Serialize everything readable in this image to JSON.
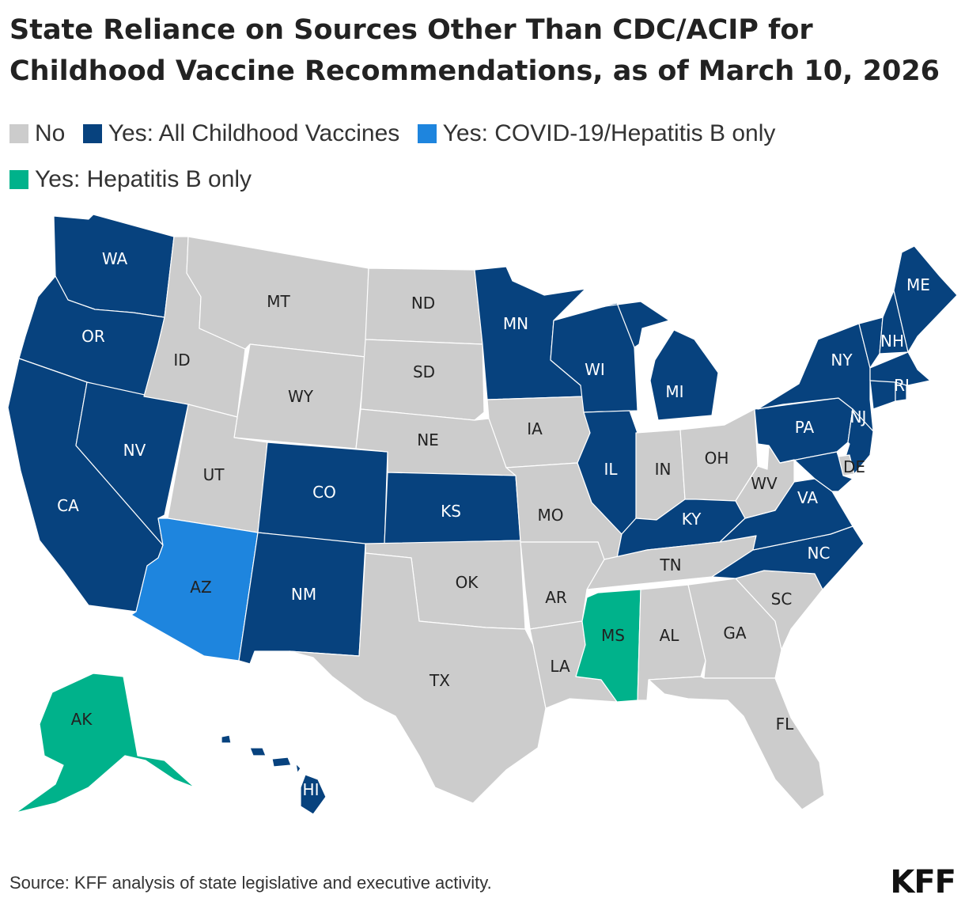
{
  "title": "State Reliance on Sources Other Than CDC/ACIP for Childhood Vaccine Recommendations, as of March 10, 2026",
  "legend": [
    {
      "key": "no",
      "label": "No",
      "color": "#cccccc"
    },
    {
      "key": "all",
      "label": "Yes: All Childhood Vaccines",
      "color": "#07427e"
    },
    {
      "key": "covid",
      "label": "Yes: COVID-19/Hepatitis B only",
      "color": "#1e85de"
    },
    {
      "key": "hepb",
      "label": "Yes: Hepatitis B only",
      "color": "#00b28b"
    }
  ],
  "states": {
    "WA": "all",
    "OR": "all",
    "CA": "all",
    "NV": "all",
    "ID": "no",
    "MT": "no",
    "WY": "no",
    "UT": "no",
    "AZ": "covid",
    "CO": "all",
    "NM": "all",
    "ND": "no",
    "SD": "no",
    "NE": "no",
    "KS": "all",
    "OK": "no",
    "TX": "no",
    "MN": "all",
    "IA": "no",
    "MO": "no",
    "AR": "no",
    "LA": "no",
    "WI": "all",
    "IL": "all",
    "MI": "all",
    "IN": "no",
    "OH": "no",
    "KY": "all",
    "TN": "no",
    "MS": "hepb",
    "AL": "no",
    "GA": "no",
    "FL": "no",
    "SC": "no",
    "NC": "all",
    "VA": "all",
    "WV": "no",
    "PA": "all",
    "NY": "all",
    "NJ": "all",
    "DE": "no",
    "MD": "all",
    "VT": "all",
    "NH": "all",
    "ME": "all",
    "MA": "all",
    "RI": "all",
    "CT": "all",
    "AK": "hepb",
    "HI": "all"
  },
  "labels": [
    "WA",
    "OR",
    "CA",
    "NV",
    "ID",
    "MT",
    "WY",
    "UT",
    "AZ",
    "CO",
    "NM",
    "ND",
    "SD",
    "NE",
    "KS",
    "OK",
    "TX",
    "MN",
    "IA",
    "MO",
    "AR",
    "LA",
    "WI",
    "IL",
    "MI",
    "IN",
    "OH",
    "KY",
    "TN",
    "MS",
    "AL",
    "GA",
    "FL",
    "SC",
    "NC",
    "VA",
    "WV",
    "PA",
    "NY",
    "NJ",
    "DE",
    "NH",
    "ME",
    "RI",
    "AK",
    "HI"
  ],
  "source": "Source: KFF analysis of state legislative and executive activity.",
  "logo": "KFF"
}
